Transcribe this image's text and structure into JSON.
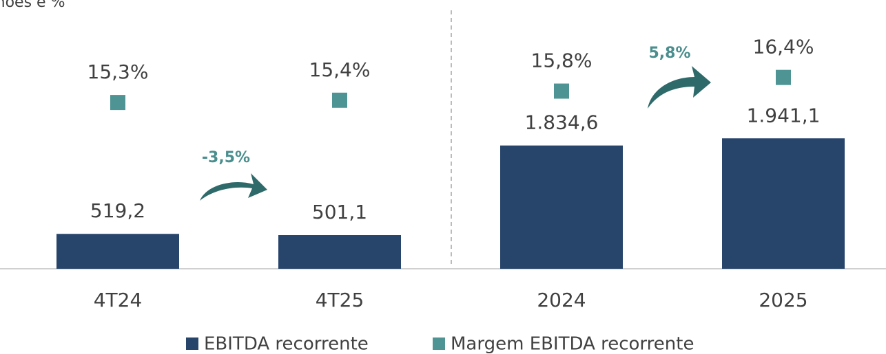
{
  "chart_data": {
    "type": "bar",
    "title": "milhões e %",
    "categories": [
      "4T24",
      "4T25",
      "2024",
      "2025"
    ],
    "series": [
      {
        "name": "EBITDA recorrente",
        "color": "#27446a",
        "values": [
          519.2,
          501.1,
          1834.6,
          1941.1
        ],
        "value_labels": [
          "519,2",
          "501,1",
          "1.834,6",
          "1.941,1"
        ]
      },
      {
        "name": "Margem EBITDA recorrente",
        "color": "#4e9494",
        "axis": "y2",
        "type": "scatter",
        "values": [
          15.3,
          15.4,
          15.8,
          16.4
        ],
        "value_labels": [
          "15,3%",
          "15,4%",
          "15,8%",
          "16,4%"
        ]
      }
    ],
    "annotations": [
      "-3,5%",
      "5,8%"
    ],
    "ylim": [
      0,
      4000
    ],
    "y2lim": [
      8,
      19.8
    ]
  }
}
